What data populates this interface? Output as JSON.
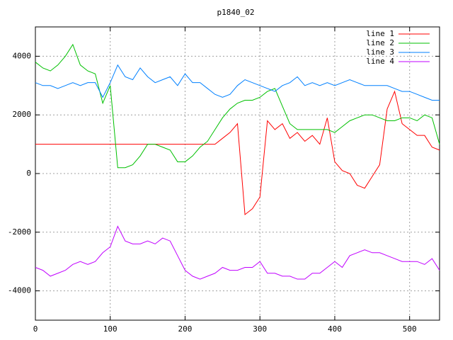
{
  "chart_data": {
    "type": "line",
    "title": "p1840_02",
    "x": [
      0,
      10,
      20,
      30,
      40,
      50,
      60,
      70,
      80,
      90,
      100,
      110,
      120,
      130,
      140,
      150,
      160,
      170,
      180,
      190,
      200,
      210,
      220,
      230,
      240,
      250,
      260,
      270,
      280,
      290,
      300,
      310,
      320,
      330,
      340,
      350,
      360,
      370,
      380,
      390,
      400,
      410,
      420,
      430,
      440,
      450,
      460,
      470,
      480,
      490,
      500,
      510,
      520,
      530,
      540
    ],
    "series": [
      {
        "name": "line 1",
        "color": "#ff0000",
        "values": [
          1000,
          1000,
          1000,
          1000,
          1000,
          1000,
          1000,
          1000,
          1000,
          1000,
          1000,
          1000,
          1000,
          1000,
          1000,
          1000,
          1000,
          1000,
          1000,
          1000,
          1000,
          1000,
          1000,
          1000,
          1000,
          1200,
          1400,
          1700,
          -1400,
          -1200,
          -800,
          1800,
          1500,
          1700,
          1200,
          1400,
          1100,
          1300,
          1000,
          1900,
          400,
          100,
          0,
          -400,
          -500,
          -100,
          300,
          2200,
          2800,
          1700,
          1500,
          1300,
          1300,
          900,
          800
        ]
      },
      {
        "name": "line 2",
        "color": "#00c000",
        "values": [
          3800,
          3600,
          3500,
          3700,
          4000,
          4400,
          3700,
          3500,
          3400,
          2400,
          3000,
          200,
          200,
          300,
          600,
          1000,
          1000,
          900,
          800,
          400,
          400,
          600,
          900,
          1100,
          1500,
          1900,
          2200,
          2400,
          2500,
          2500,
          2600,
          2800,
          2900,
          2300,
          1700,
          1500,
          1500,
          1500,
          1500,
          1500,
          1400,
          1600,
          1800,
          1900,
          2000,
          2000,
          1900,
          1800,
          1800,
          1900,
          1900,
          1800,
          2000,
          1900,
          1000
        ]
      },
      {
        "name": "line 3",
        "color": "#0080ff",
        "values": [
          3100,
          3000,
          3000,
          2900,
          3000,
          3100,
          3000,
          3100,
          3100,
          2600,
          3100,
          3700,
          3300,
          3200,
          3600,
          3300,
          3100,
          3200,
          3300,
          3000,
          3400,
          3100,
          3100,
          2900,
          2700,
          2600,
          2700,
          3000,
          3200,
          3100,
          3000,
          2900,
          2800,
          3000,
          3100,
          3300,
          3000,
          3100,
          3000,
          3100,
          3000,
          3100,
          3200,
          3100,
          3000,
          3000,
          3000,
          3000,
          2900,
          2800,
          2800,
          2700,
          2600,
          2500,
          2500
        ]
      },
      {
        "name": "line 4",
        "color": "#c000ff",
        "values": [
          -3200,
          -3300,
          -3500,
          -3400,
          -3300,
          -3100,
          -3000,
          -3100,
          -3000,
          -2700,
          -2500,
          -1800,
          -2300,
          -2400,
          -2400,
          -2300,
          -2400,
          -2200,
          -2300,
          -2800,
          -3300,
          -3500,
          -3600,
          -3500,
          -3400,
          -3200,
          -3300,
          -3300,
          -3200,
          -3200,
          -3000,
          -3400,
          -3400,
          -3500,
          -3500,
          -3600,
          -3600,
          -3400,
          -3400,
          -3200,
          -3000,
          -3200,
          -2800,
          -2700,
          -2600,
          -2700,
          -2700,
          -2800,
          -2900,
          -3000,
          -3000,
          -3000,
          -3100,
          -2900,
          -3300
        ]
      }
    ],
    "xlim": [
      0,
      540
    ],
    "xticks": [
      0,
      100,
      200,
      300,
      400,
      500
    ],
    "ylim": [
      -5000,
      5000
    ],
    "yticks": [
      -4000,
      -2000,
      0,
      2000,
      4000
    ],
    "grid": true,
    "legend": "top-right"
  }
}
